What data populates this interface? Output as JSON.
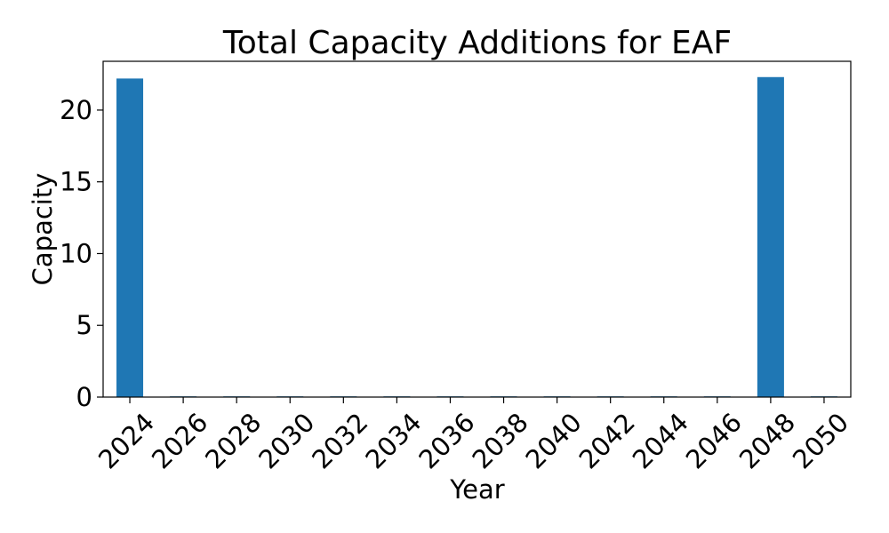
{
  "chart_data": {
    "type": "bar",
    "title": "Total Capacity Additions for EAF",
    "xlabel": "Year",
    "ylabel": "Capacity",
    "categories": [
      "2024",
      "2026",
      "2028",
      "2030",
      "2032",
      "2034",
      "2036",
      "2038",
      "2040",
      "2042",
      "2044",
      "2046",
      "2048",
      "2050"
    ],
    "values": [
      22.2,
      0.05,
      0.05,
      0.05,
      0.05,
      0.05,
      0.05,
      0.05,
      0.05,
      0.05,
      0.05,
      0.05,
      22.3,
      0.05
    ],
    "ylim": [
      0,
      23.4
    ],
    "yticks": [
      "0",
      "5",
      "10",
      "15",
      "20"
    ],
    "bar_color": "#1f77b4",
    "grid": false,
    "legend": "none"
  }
}
